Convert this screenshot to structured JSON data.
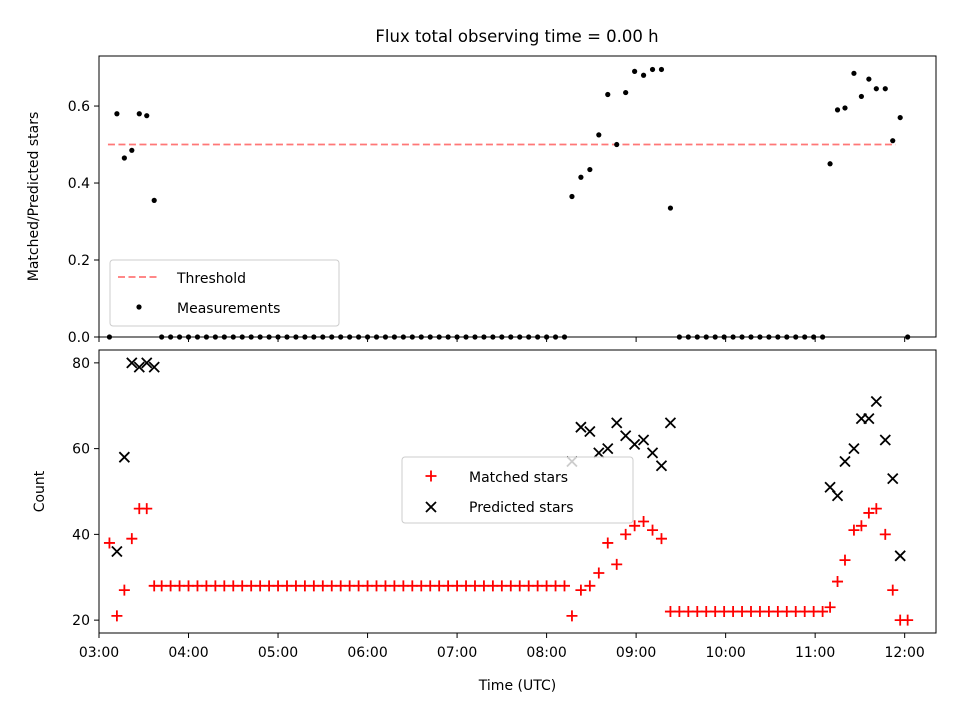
{
  "figure": {
    "title": "Flux total observing time = 0.00 h"
  },
  "chart_data": [
    {
      "type": "scatter",
      "ylabel": "Matched/Predicted stars",
      "xlim": [
        3.0,
        12.35
      ],
      "ylim": [
        0.0,
        0.73
      ],
      "yticks": [
        0.0,
        0.2,
        0.4,
        0.6
      ],
      "ytick_labels": [
        "0.0",
        "0.2",
        "0.4",
        "0.6"
      ],
      "legend": {
        "placement": "lower-left",
        "entries": [
          "Threshold",
          "Measurements"
        ]
      },
      "threshold": {
        "name": "Threshold",
        "color": "#ff7777",
        "style": "dashed",
        "y": 0.5,
        "x": [
          3.1,
          11.9
        ]
      },
      "measurements": {
        "name": "Measurements",
        "color": "#000000",
        "points": [
          [
            "03:07",
            0.0
          ],
          [
            "03:12",
            0.58
          ],
          [
            "03:17",
            0.465
          ],
          [
            "03:22",
            0.485
          ],
          [
            "03:27",
            0.58
          ],
          [
            "03:32",
            0.575
          ],
          [
            "03:37",
            0.355
          ],
          [
            "03:42",
            0.0
          ],
          [
            "03:48",
            0.0
          ],
          [
            "03:54",
            0.0
          ],
          [
            "04:00",
            0.0
          ],
          [
            "04:06",
            0.0
          ],
          [
            "04:12",
            0.0
          ],
          [
            "04:18",
            0.0
          ],
          [
            "04:24",
            0.0
          ],
          [
            "04:30",
            0.0
          ],
          [
            "04:36",
            0.0
          ],
          [
            "04:42",
            0.0
          ],
          [
            "04:48",
            0.0
          ],
          [
            "04:54",
            0.0
          ],
          [
            "05:00",
            0.0
          ],
          [
            "05:06",
            0.0
          ],
          [
            "05:12",
            0.0
          ],
          [
            "05:18",
            0.0
          ],
          [
            "05:24",
            0.0
          ],
          [
            "05:30",
            0.0
          ],
          [
            "05:36",
            0.0
          ],
          [
            "05:42",
            0.0
          ],
          [
            "05:48",
            0.0
          ],
          [
            "05:54",
            0.0
          ],
          [
            "06:00",
            0.0
          ],
          [
            "06:06",
            0.0
          ],
          [
            "06:12",
            0.0
          ],
          [
            "06:18",
            0.0
          ],
          [
            "06:24",
            0.0
          ],
          [
            "06:30",
            0.0
          ],
          [
            "06:36",
            0.0
          ],
          [
            "06:42",
            0.0
          ],
          [
            "06:48",
            0.0
          ],
          [
            "06:54",
            0.0
          ],
          [
            "07:00",
            0.0
          ],
          [
            "07:06",
            0.0
          ],
          [
            "07:12",
            0.0
          ],
          [
            "07:18",
            0.0
          ],
          [
            "07:24",
            0.0
          ],
          [
            "07:30",
            0.0
          ],
          [
            "07:36",
            0.0
          ],
          [
            "07:42",
            0.0
          ],
          [
            "07:48",
            0.0
          ],
          [
            "07:54",
            0.0
          ],
          [
            "08:00",
            0.0
          ],
          [
            "08:06",
            0.0
          ],
          [
            "08:12",
            0.0
          ],
          [
            "08:17",
            0.365
          ],
          [
            "08:23",
            0.415
          ],
          [
            "08:29",
            0.435
          ],
          [
            "08:35",
            0.525
          ],
          [
            "08:41",
            0.63
          ],
          [
            "08:47",
            0.5
          ],
          [
            "08:53",
            0.635
          ],
          [
            "08:59",
            0.69
          ],
          [
            "09:05",
            0.68
          ],
          [
            "09:11",
            0.695
          ],
          [
            "09:17",
            0.695
          ],
          [
            "09:23",
            0.335
          ],
          [
            "09:29",
            0.0
          ],
          [
            "09:35",
            0.0
          ],
          [
            "09:41",
            0.0
          ],
          [
            "09:47",
            0.0
          ],
          [
            "09:53",
            0.0
          ],
          [
            "09:59",
            0.0
          ],
          [
            "10:05",
            0.0
          ],
          [
            "10:11",
            0.0
          ],
          [
            "10:17",
            0.0
          ],
          [
            "10:23",
            0.0
          ],
          [
            "10:29",
            0.0
          ],
          [
            "10:35",
            0.0
          ],
          [
            "10:41",
            0.0
          ],
          [
            "10:47",
            0.0
          ],
          [
            "10:53",
            0.0
          ],
          [
            "10:59",
            0.0
          ],
          [
            "11:05",
            0.0
          ],
          [
            "11:10",
            0.45
          ],
          [
            "11:15",
            0.59
          ],
          [
            "11:20",
            0.595
          ],
          [
            "11:26",
            0.685
          ],
          [
            "11:31",
            0.625
          ],
          [
            "11:36",
            0.67
          ],
          [
            "11:41",
            0.645
          ],
          [
            "11:47",
            0.645
          ],
          [
            "11:52",
            0.51
          ],
          [
            "11:57",
            0.57
          ],
          [
            "12:02",
            0.0
          ]
        ]
      }
    },
    {
      "type": "scatter",
      "xlabel": "Time (UTC)",
      "ylabel": "Count",
      "xlim": [
        3.0,
        12.35
      ],
      "ylim": [
        17,
        83
      ],
      "yticks": [
        20,
        40,
        60,
        80
      ],
      "ytick_labels": [
        "20",
        "40",
        "60",
        "80"
      ],
      "xticks": [
        "03:00",
        "04:00",
        "05:00",
        "06:00",
        "07:00",
        "08:00",
        "09:00",
        "10:00",
        "11:00",
        "12:00"
      ],
      "xtick_labels": [
        "03:00",
        "04:00",
        "05:00",
        "06:00",
        "07:00",
        "08:00",
        "09:00",
        "10:00",
        "11:00",
        "12:00"
      ],
      "legend": {
        "placement": "center",
        "entries": [
          "Matched stars",
          "Predicted stars"
        ]
      },
      "series": [
        {
          "name": "Matched stars",
          "marker": "plus",
          "color": "#ff0000",
          "points": [
            [
              "03:07",
              38
            ],
            [
              "03:12",
              21
            ],
            [
              "03:17",
              27
            ],
            [
              "03:22",
              39
            ],
            [
              "03:27",
              46
            ],
            [
              "03:32",
              46
            ],
            [
              "03:37",
              28
            ],
            [
              "03:42",
              28
            ],
            [
              "03:48",
              28
            ],
            [
              "03:54",
              28
            ],
            [
              "04:00",
              28
            ],
            [
              "04:06",
              28
            ],
            [
              "04:12",
              28
            ],
            [
              "04:18",
              28
            ],
            [
              "04:24",
              28
            ],
            [
              "04:30",
              28
            ],
            [
              "04:36",
              28
            ],
            [
              "04:42",
              28
            ],
            [
              "04:48",
              28
            ],
            [
              "04:54",
              28
            ],
            [
              "05:00",
              28
            ],
            [
              "05:06",
              28
            ],
            [
              "05:12",
              28
            ],
            [
              "05:18",
              28
            ],
            [
              "05:24",
              28
            ],
            [
              "05:30",
              28
            ],
            [
              "05:36",
              28
            ],
            [
              "05:42",
              28
            ],
            [
              "05:48",
              28
            ],
            [
              "05:54",
              28
            ],
            [
              "06:00",
              28
            ],
            [
              "06:06",
              28
            ],
            [
              "06:12",
              28
            ],
            [
              "06:18",
              28
            ],
            [
              "06:24",
              28
            ],
            [
              "06:30",
              28
            ],
            [
              "06:36",
              28
            ],
            [
              "06:42",
              28
            ],
            [
              "06:48",
              28
            ],
            [
              "06:54",
              28
            ],
            [
              "07:00",
              28
            ],
            [
              "07:06",
              28
            ],
            [
              "07:12",
              28
            ],
            [
              "07:18",
              28
            ],
            [
              "07:24",
              28
            ],
            [
              "07:30",
              28
            ],
            [
              "07:36",
              28
            ],
            [
              "07:42",
              28
            ],
            [
              "07:48",
              28
            ],
            [
              "07:54",
              28
            ],
            [
              "08:00",
              28
            ],
            [
              "08:06",
              28
            ],
            [
              "08:12",
              28
            ],
            [
              "08:17",
              21
            ],
            [
              "08:23",
              27
            ],
            [
              "08:29",
              28
            ],
            [
              "08:35",
              31
            ],
            [
              "08:41",
              38
            ],
            [
              "08:47",
              33
            ],
            [
              "08:53",
              40
            ],
            [
              "08:59",
              42
            ],
            [
              "09:05",
              43
            ],
            [
              "09:11",
              41
            ],
            [
              "09:17",
              39
            ],
            [
              "09:23",
              22
            ],
            [
              "09:29",
              22
            ],
            [
              "09:35",
              22
            ],
            [
              "09:41",
              22
            ],
            [
              "09:47",
              22
            ],
            [
              "09:53",
              22
            ],
            [
              "09:59",
              22
            ],
            [
              "10:05",
              22
            ],
            [
              "10:11",
              22
            ],
            [
              "10:17",
              22
            ],
            [
              "10:23",
              22
            ],
            [
              "10:29",
              22
            ],
            [
              "10:35",
              22
            ],
            [
              "10:41",
              22
            ],
            [
              "10:47",
              22
            ],
            [
              "10:53",
              22
            ],
            [
              "10:59",
              22
            ],
            [
              "11:05",
              22
            ],
            [
              "11:10",
              23
            ],
            [
              "11:15",
              29
            ],
            [
              "11:20",
              34
            ],
            [
              "11:26",
              41
            ],
            [
              "11:31",
              42
            ],
            [
              "11:36",
              45
            ],
            [
              "11:41",
              46
            ],
            [
              "11:47",
              40
            ],
            [
              "11:52",
              27
            ],
            [
              "11:57",
              20
            ],
            [
              "12:02",
              20
            ]
          ]
        },
        {
          "name": "Predicted stars",
          "marker": "x",
          "color": "#000000",
          "points": [
            [
              "03:12",
              36
            ],
            [
              "03:17",
              58
            ],
            [
              "03:22",
              80
            ],
            [
              "03:27",
              79
            ],
            [
              "03:32",
              80
            ],
            [
              "03:37",
              79
            ],
            [
              "08:17",
              57
            ],
            [
              "08:23",
              65
            ],
            [
              "08:29",
              64
            ],
            [
              "08:35",
              59
            ],
            [
              "08:41",
              60
            ],
            [
              "08:47",
              66
            ],
            [
              "08:53",
              63
            ],
            [
              "08:59",
              61
            ],
            [
              "09:05",
              62
            ],
            [
              "09:11",
              59
            ],
            [
              "09:17",
              56
            ],
            [
              "09:23",
              66
            ],
            [
              "11:10",
              51
            ],
            [
              "11:15",
              49
            ],
            [
              "11:20",
              57
            ],
            [
              "11:26",
              60
            ],
            [
              "11:31",
              67
            ],
            [
              "11:36",
              67
            ],
            [
              "11:41",
              71
            ],
            [
              "11:47",
              62
            ],
            [
              "11:52",
              53
            ],
            [
              "11:57",
              35
            ]
          ]
        }
      ]
    }
  ]
}
